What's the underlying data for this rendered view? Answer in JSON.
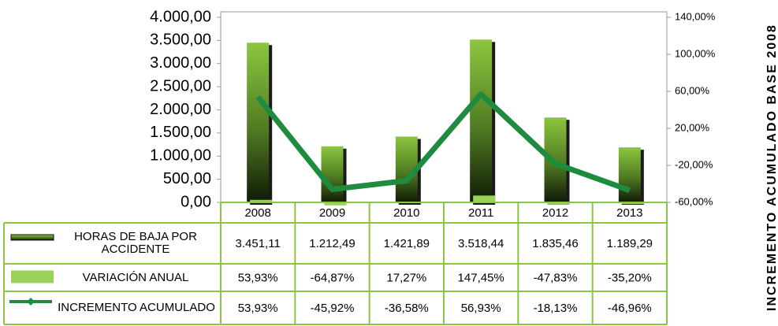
{
  "chart_data": {
    "type": "bar",
    "categories": [
      "2008",
      "2009",
      "2010",
      "2011",
      "2012",
      "2013"
    ],
    "ylim": [
      0,
      4000
    ],
    "yticks": [
      {
        "value": 0,
        "label": "0,00"
      },
      {
        "value": 500,
        "label": "500,00"
      },
      {
        "value": 1000,
        "label": "1.000,00"
      },
      {
        "value": 1500,
        "label": "1.500,00"
      },
      {
        "value": 2000,
        "label": "2.000,00"
      },
      {
        "value": 2500,
        "label": "2.500,00"
      },
      {
        "value": 3000,
        "label": "3.000,00"
      },
      {
        "value": 3500,
        "label": "3.500,00"
      },
      {
        "value": 4000,
        "label": "4.000,00"
      }
    ],
    "y2lim": [
      -60,
      140
    ],
    "y2ticks": [
      {
        "value": -60,
        "label": "-60,00%"
      },
      {
        "value": -20,
        "label": "-20,00%"
      },
      {
        "value": 20,
        "label": "20,00%"
      },
      {
        "value": 60,
        "label": "60,00%"
      },
      {
        "value": 100,
        "label": "100,00%"
      },
      {
        "value": 140,
        "label": "140,00%"
      }
    ],
    "y2label": "INCREMENTO ACUMULADO BASE 2008",
    "series": [
      {
        "name": "HORAS DE BAJA POR ACCIDENTE",
        "type": "bar",
        "color": "#8cc63f",
        "values": [
          3451.11,
          1212.49,
          1421.89,
          3518.44,
          1835.46,
          1189.29
        ],
        "value_labels": [
          "3.451,11",
          "1.212,49",
          "1.421,89",
          "3.518,44",
          "1.835,46",
          "1.189,29"
        ]
      },
      {
        "name": "VARIACIÓN ANUAL",
        "type": "bar",
        "color": "#9bd35a",
        "values": [
          53.93,
          -64.87,
          17.27,
          147.45,
          -47.83,
          -35.2
        ],
        "value_labels": [
          "53,93%",
          "-64,87%",
          "17,27%",
          "147,45%",
          "-47,83%",
          "-35,20%"
        ]
      },
      {
        "name": "INCREMENTO ACUMULADO",
        "type": "line",
        "axis": "y2",
        "color": "#1f8b3f",
        "values": [
          53.93,
          -45.92,
          -36.58,
          56.93,
          -18.13,
          -46.96
        ],
        "value_labels": [
          "53,93%",
          "-45,92%",
          "-36,58%",
          "56,93%",
          "-18,13%",
          "-46,96%"
        ]
      }
    ]
  }
}
